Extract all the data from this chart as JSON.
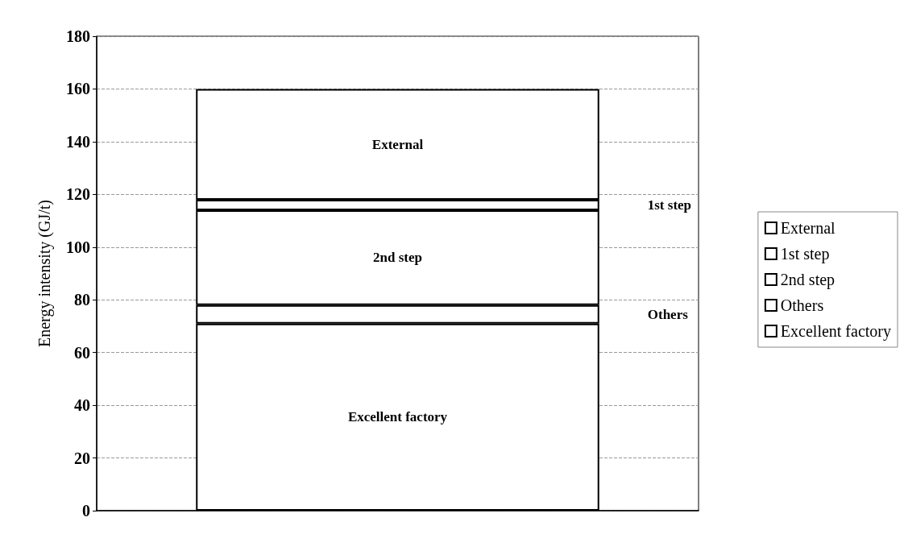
{
  "chart_data": {
    "type": "bar",
    "stacked": true,
    "ylabel": "Energy intensity (GJ/t)",
    "categories": [
      null
    ],
    "series": [
      {
        "name": "Excellent factory",
        "color": "#ffffff",
        "values": [
          71
        ]
      },
      {
        "name": "Others",
        "color": "#ffffff",
        "values": [
          7
        ]
      },
      {
        "name": "2nd step",
        "color": "#ffffff",
        "values": [
          36
        ]
      },
      {
        "name": "1st step",
        "color": "#ffffff",
        "values": [
          4
        ]
      },
      {
        "name": "External",
        "color": "#ffffff",
        "values": [
          42
        ]
      }
    ],
    "ylim": [
      0,
      180
    ],
    "yticks": [
      0,
      20,
      40,
      60,
      80,
      100,
      120,
      140,
      160,
      180
    ],
    "grid": "y",
    "legend": "right"
  }
}
